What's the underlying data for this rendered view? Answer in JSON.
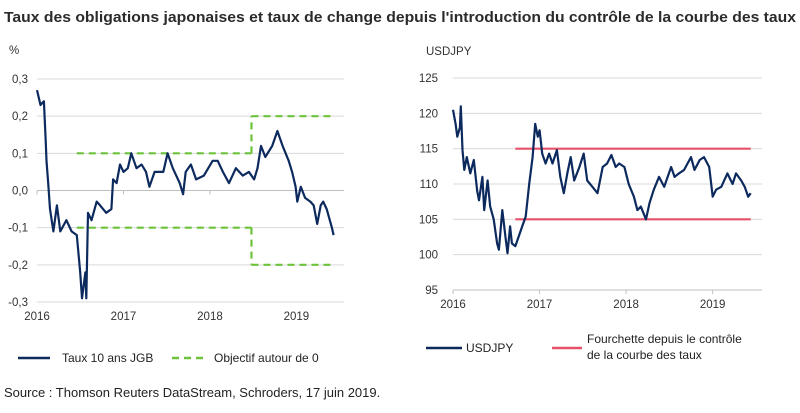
{
  "title": "Taux des obligations japonaises et taux de change depuis l'introduction du contrôle de la courbe des taux",
  "source": "Source : Thomson Reuters DataStream, Schroders, 17 juin 2019.",
  "colors": {
    "series": "#0d2a5e",
    "target": "#6cc33a",
    "range": "#e8506a",
    "grid": "#d9d9d9",
    "axis": "#bfbfbf"
  },
  "chart_data": [
    {
      "type": "line",
      "ylabel": "%",
      "xlim": [
        2016,
        2019.55
      ],
      "ylim": [
        -0.3,
        0.3
      ],
      "xticks": [
        2016,
        2017,
        2018,
        2019
      ],
      "xtick_labels": [
        "2016",
        "2017",
        "2018",
        "2019"
      ],
      "yticks": [
        0.3,
        0.2,
        0.1,
        0.0,
        -0.1,
        -0.2,
        -0.3
      ],
      "ytick_labels": [
        "0,3",
        "0,2",
        "0,1",
        "0,0",
        "-0,1",
        "-0,2",
        "-0,3"
      ],
      "grid": true,
      "legend_position": "bottom",
      "series": [
        {
          "name": "Taux 10 ans JGB",
          "style": "solid",
          "x": [
            2016.0,
            2016.04,
            2016.08,
            2016.1,
            2016.11,
            2016.13,
            2016.15,
            2016.19,
            2016.23,
            2016.27,
            2016.34,
            2016.4,
            2016.46,
            2016.48,
            2016.5,
            2016.52,
            2016.56,
            2016.57,
            2016.59,
            2016.63,
            2016.69,
            2016.73,
            2016.8,
            2016.86,
            2016.88,
            2016.92,
            2016.96,
            2017.0,
            2017.05,
            2017.09,
            2017.15,
            2017.21,
            2017.26,
            2017.3,
            2017.36,
            2017.46,
            2017.51,
            2017.57,
            2017.65,
            2017.69,
            2017.72,
            2017.78,
            2017.84,
            2017.93,
            2018.03,
            2018.09,
            2018.15,
            2018.22,
            2018.3,
            2018.38,
            2018.45,
            2018.51,
            2018.55,
            2018.59,
            2018.64,
            2018.72,
            2018.78,
            2018.84,
            2018.91,
            2018.95,
            2018.99,
            2019.01,
            2019.05,
            2019.1,
            2019.16,
            2019.2,
            2019.24,
            2019.28,
            2019.31,
            2019.35,
            2019.41,
            2019.43
          ],
          "y": [
            0.27,
            0.23,
            0.24,
            0.14,
            0.08,
            0.02,
            -0.05,
            -0.11,
            -0.04,
            -0.11,
            -0.08,
            -0.11,
            -0.12,
            -0.17,
            -0.22,
            -0.29,
            -0.22,
            -0.29,
            -0.06,
            -0.08,
            -0.03,
            -0.04,
            -0.06,
            -0.05,
            0.03,
            0.02,
            0.07,
            0.05,
            0.06,
            0.1,
            0.06,
            0.07,
            0.05,
            0.01,
            0.05,
            0.05,
            0.1,
            0.06,
            0.02,
            -0.01,
            0.05,
            0.07,
            0.03,
            0.04,
            0.08,
            0.08,
            0.05,
            0.02,
            0.06,
            0.04,
            0.05,
            0.03,
            0.06,
            0.12,
            0.09,
            0.12,
            0.16,
            0.12,
            0.08,
            0.05,
            0.01,
            -0.03,
            0.01,
            -0.02,
            -0.03,
            -0.04,
            -0.09,
            -0.04,
            -0.03,
            -0.05,
            -0.1,
            -0.12
          ]
        },
        {
          "name": "Objectif autour de 0",
          "style": "dashed",
          "segments": [
            {
              "x": [
                2016.46,
                2018.48
              ],
              "y": [
                0.1,
                0.1
              ]
            },
            {
              "x": [
                2016.46,
                2018.48
              ],
              "y": [
                -0.1,
                -0.1
              ]
            },
            {
              "x": [
                2018.48,
                2018.48
              ],
              "y": [
                0.1,
                0.2
              ]
            },
            {
              "x": [
                2018.48,
                2018.48
              ],
              "y": [
                -0.1,
                -0.2
              ]
            },
            {
              "x": [
                2018.48,
                2019.41
              ],
              "y": [
                0.2,
                0.2
              ]
            },
            {
              "x": [
                2018.48,
                2019.41
              ],
              "y": [
                -0.2,
                -0.2
              ]
            }
          ]
        }
      ]
    },
    {
      "type": "line",
      "ylabel": "USDJPY",
      "xlim": [
        2016,
        2019.57
      ],
      "ylim": [
        95,
        125
      ],
      "xticks": [
        2016,
        2017,
        2018,
        2019
      ],
      "xtick_labels": [
        "2016",
        "2017",
        "2018",
        "2019"
      ],
      "yticks": [
        125,
        120,
        115,
        110,
        105,
        100,
        95
      ],
      "ytick_labels": [
        "125",
        "120",
        "115",
        "110",
        "105",
        "100",
        "95"
      ],
      "grid": true,
      "legend_position": "bottom",
      "series": [
        {
          "name": "USDJPY",
          "style": "solid",
          "x": [
            2016.0,
            2016.03,
            2016.05,
            2016.08,
            2016.09,
            2016.11,
            2016.13,
            2016.16,
            2016.2,
            2016.24,
            2016.28,
            2016.3,
            2016.34,
            2016.36,
            2016.4,
            2016.43,
            2016.47,
            2016.51,
            2016.53,
            2016.57,
            2016.61,
            2016.63,
            2016.66,
            2016.68,
            2016.72,
            2016.76,
            2016.8,
            2016.84,
            2016.88,
            2016.92,
            2016.95,
            2016.98,
            2017.0,
            2017.03,
            2017.07,
            2017.11,
            2017.15,
            2017.2,
            2017.24,
            2017.28,
            2017.32,
            2017.36,
            2017.4,
            2017.46,
            2017.51,
            2017.55,
            2017.61,
            2017.67,
            2017.73,
            2017.78,
            2017.83,
            2017.88,
            2017.92,
            2017.98,
            2018.03,
            2018.09,
            2018.13,
            2018.17,
            2018.23,
            2018.27,
            2018.32,
            2018.38,
            2018.44,
            2018.52,
            2018.56,
            2018.61,
            2018.67,
            2018.75,
            2018.79,
            2018.85,
            2018.9,
            2018.96,
            2019.0,
            2019.04,
            2019.1,
            2019.17,
            2019.23,
            2019.27,
            2019.33,
            2019.37,
            2019.41,
            2019.44
          ],
          "y": [
            120.5,
            118.5,
            116.7,
            118.0,
            121.0,
            114.8,
            112.0,
            113.8,
            111.5,
            113.4,
            109.0,
            107.7,
            111.0,
            106.3,
            110.5,
            106.8,
            105.0,
            101.6,
            100.7,
            106.3,
            102.1,
            100.2,
            104.0,
            101.6,
            101.2,
            102.6,
            104.0,
            105.4,
            110.0,
            113.8,
            118.5,
            116.7,
            117.6,
            114.3,
            112.9,
            114.3,
            112.9,
            114.8,
            111.0,
            108.7,
            111.5,
            113.8,
            110.5,
            112.4,
            114.3,
            110.5,
            109.6,
            108.7,
            112.4,
            112.9,
            114.1,
            112.4,
            112.9,
            112.4,
            110.0,
            108.2,
            106.3,
            106.8,
            105.0,
            107.3,
            109.2,
            111.0,
            109.6,
            112.4,
            111.0,
            111.5,
            112.0,
            113.8,
            112.0,
            113.4,
            113.8,
            112.4,
            108.2,
            109.2,
            109.6,
            111.5,
            110.0,
            111.5,
            110.5,
            109.6,
            108.2,
            108.7
          ]
        },
        {
          "name": "Fourchette depuis le contrôle de la courbe des taux",
          "name_lines": [
            "Fourchette depuis le contrôle",
            "de la courbe des taux"
          ],
          "style": "solid",
          "segments": [
            {
              "x": [
                2016.72,
                2019.44
              ],
              "y": [
                115,
                115
              ]
            },
            {
              "x": [
                2016.72,
                2019.44
              ],
              "y": [
                105,
                105
              ]
            }
          ]
        }
      ]
    }
  ]
}
